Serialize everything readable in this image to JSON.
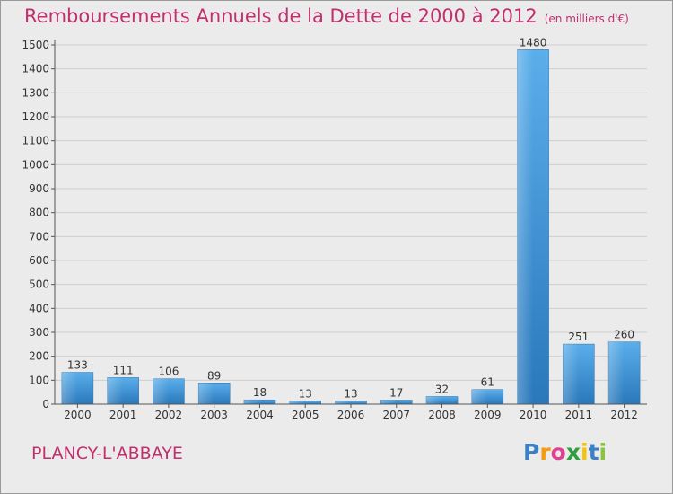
{
  "chart_data": {
    "type": "bar",
    "title": "Remboursements Annuels de la Dette de 2000 à 2012",
    "subtitle": "(en milliers d'€)",
    "categories": [
      "2000",
      "2001",
      "2002",
      "2003",
      "2004",
      "2005",
      "2006",
      "2007",
      "2008",
      "2009",
      "2010",
      "2011",
      "2012"
    ],
    "values": [
      133,
      111,
      106,
      89,
      18,
      13,
      13,
      17,
      32,
      61,
      1480,
      251,
      260
    ],
    "yticks": [
      0,
      100,
      200,
      300,
      400,
      500,
      600,
      700,
      800,
      900,
      1000,
      1100,
      1200,
      1300,
      1400,
      1500
    ],
    "ylim": [
      0,
      1500
    ],
    "grid": true,
    "bar_color": "#4a9ee0"
  },
  "footer": {
    "city": "PLANCY-L'ABBAYE",
    "logo_letters": [
      {
        "ch": "P",
        "color": "#3d7fc4"
      },
      {
        "ch": "r",
        "color": "#f39c12"
      },
      {
        "ch": "o",
        "color": "#e04090"
      },
      {
        "ch": "x",
        "color": "#2e9e3e"
      },
      {
        "ch": "i",
        "color": "#f4c20d"
      },
      {
        "ch": "t",
        "color": "#3d7fc4"
      },
      {
        "ch": "i",
        "color": "#8ac43f"
      }
    ]
  }
}
